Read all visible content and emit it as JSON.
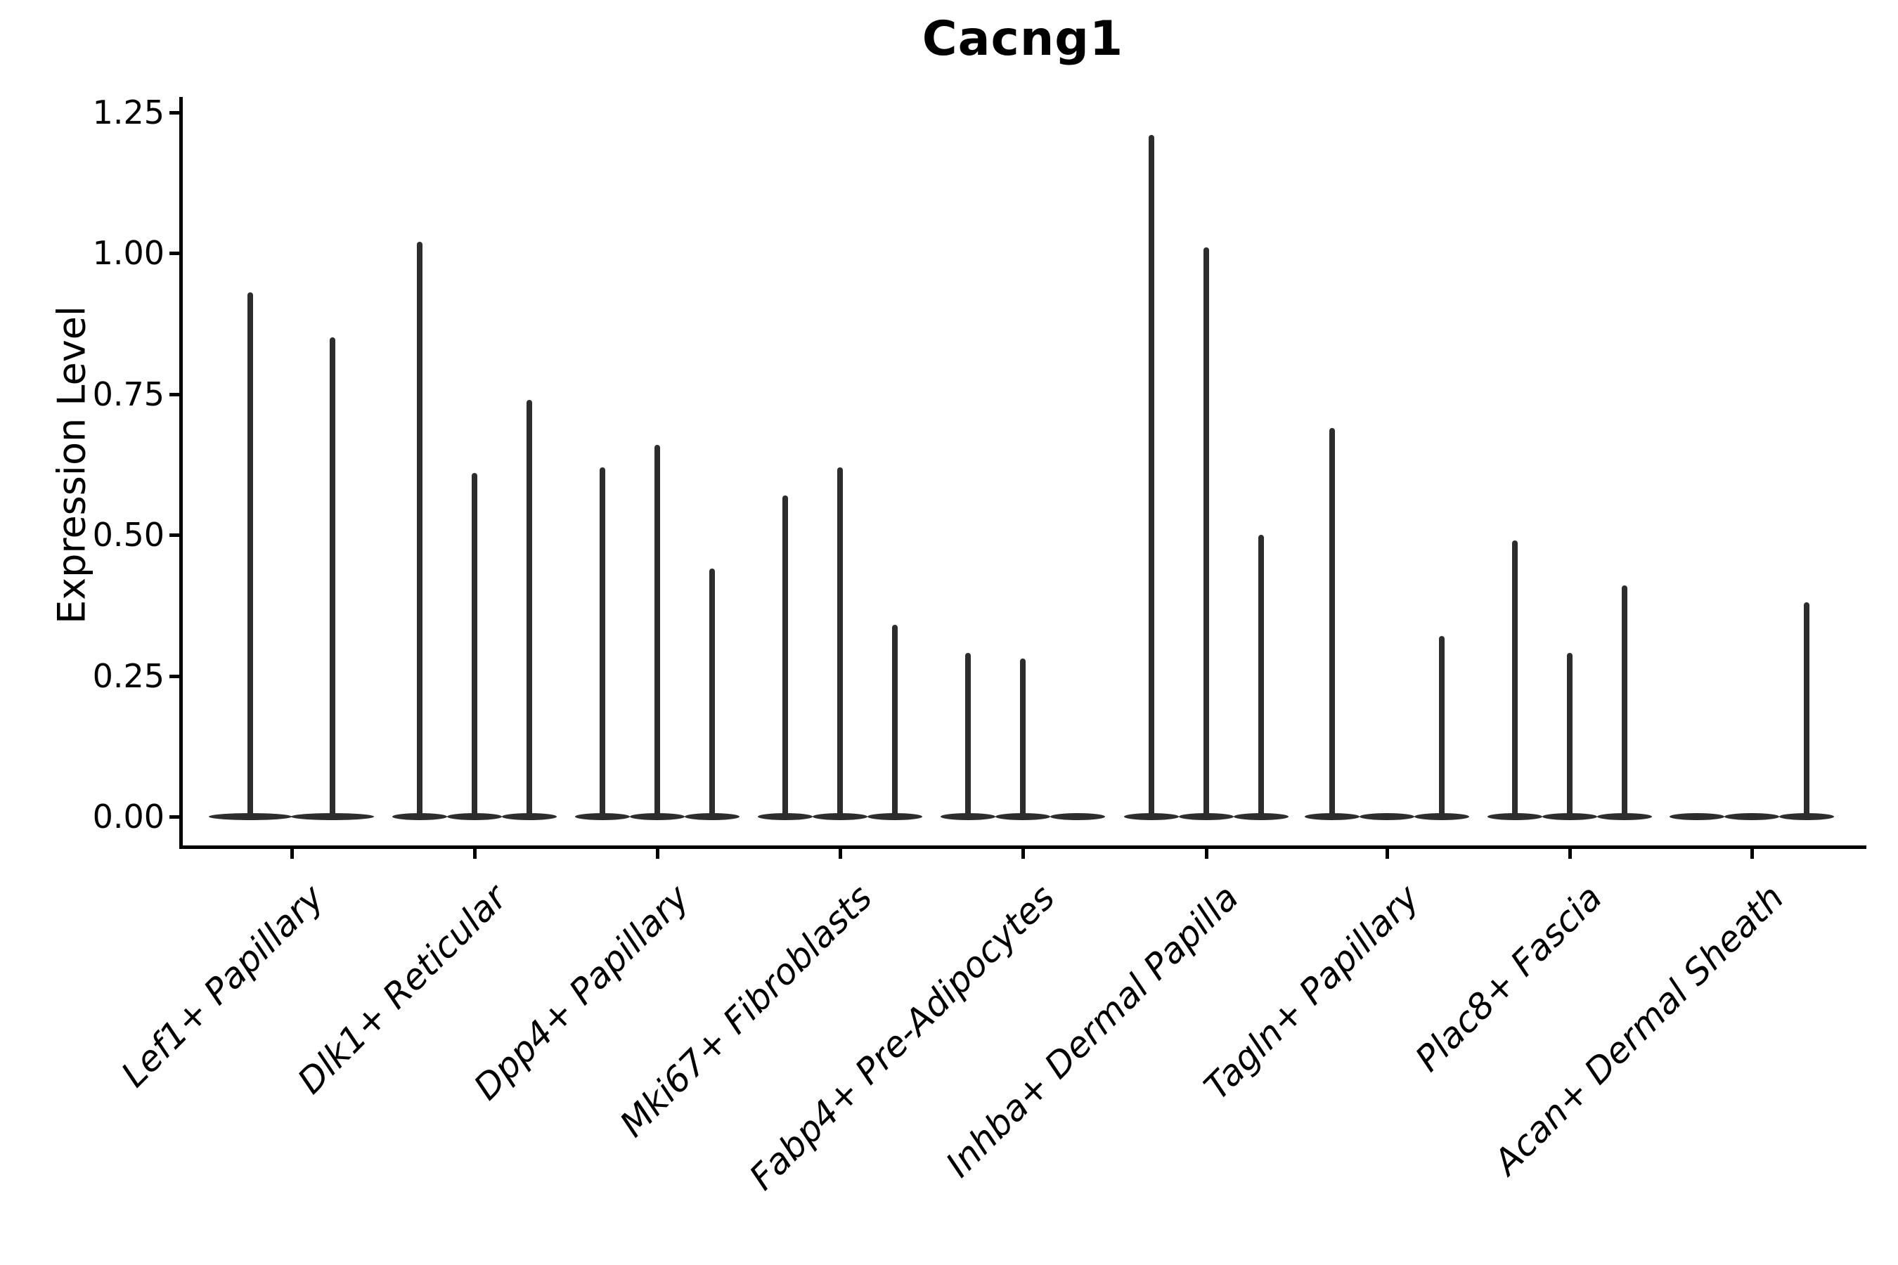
{
  "chart_data": {
    "type": "violin",
    "title": "Cacng1",
    "ylabel": "Expression Level",
    "xlabel": "",
    "ylim": [
      0,
      1.25
    ],
    "yticks": [
      0,
      0.25,
      0.5,
      0.75,
      1.0,
      1.25
    ],
    "ytick_labels": [
      "0.00",
      "0.25",
      "0.50",
      "0.75",
      "1.00",
      "1.25"
    ],
    "grid": false,
    "legend": "none",
    "violin_color": "#2d2d2d",
    "axis_color": "#000000",
    "categories": [
      "Lef1+ Papillary",
      "Dlk1+ Reticular",
      "Dpp4+ Papillary",
      "Mki67+ Fibroblasts",
      "Fabp4+ Pre-Adipocytes",
      "Inhba+ Dermal Papilla",
      "Tagln+ Papillary",
      "Plac8+ Fascia",
      "Acan+ Dermal Sheath"
    ],
    "groups": [
      {
        "category": "Lef1+ Papillary",
        "violins": [
          {
            "offset": -59,
            "width": 118,
            "max": 0.93
          },
          {
            "offset": 58,
            "width": 118,
            "max": 0.85
          }
        ]
      },
      {
        "category": "Dlk1+ Reticular",
        "violins": [
          {
            "offset": -78,
            "width": 78,
            "max": 1.02
          },
          {
            "offset": 0,
            "width": 78,
            "max": 0.61
          },
          {
            "offset": 78,
            "width": 78,
            "max": 0.74
          }
        ]
      },
      {
        "category": "Dpp4+ Papillary",
        "violins": [
          {
            "offset": -78,
            "width": 78,
            "max": 0.62
          },
          {
            "offset": 0,
            "width": 78,
            "max": 0.66
          },
          {
            "offset": 78,
            "width": 78,
            "max": 0.44
          }
        ]
      },
      {
        "category": "Mki67+ Fibroblasts",
        "violins": [
          {
            "offset": -78,
            "width": 78,
            "max": 0.57
          },
          {
            "offset": 0,
            "width": 78,
            "max": 0.62
          },
          {
            "offset": 78,
            "width": 78,
            "max": 0.34
          }
        ]
      },
      {
        "category": "Fabp4+ Pre-Adipocytes",
        "violins": [
          {
            "offset": -78,
            "width": 78,
            "max": 0.29
          },
          {
            "offset": 0,
            "width": 78,
            "max": 0.28
          },
          {
            "offset": 78,
            "width": 78,
            "max": 0.0
          }
        ]
      },
      {
        "category": "Inhba+ Dermal Papilla",
        "violins": [
          {
            "offset": -78,
            "width": 78,
            "max": 1.21
          },
          {
            "offset": 0,
            "width": 78,
            "max": 1.01
          },
          {
            "offset": 78,
            "width": 78,
            "max": 0.5
          }
        ]
      },
      {
        "category": "Tagln+ Papillary",
        "violins": [
          {
            "offset": -78,
            "width": 78,
            "max": 0.69
          },
          {
            "offset": 0,
            "width": 78,
            "max": 0.0
          },
          {
            "offset": 78,
            "width": 78,
            "max": 0.32
          }
        ]
      },
      {
        "category": "Plac8+ Fascia",
        "violins": [
          {
            "offset": -78,
            "width": 78,
            "max": 0.49
          },
          {
            "offset": 0,
            "width": 78,
            "max": 0.29
          },
          {
            "offset": 78,
            "width": 78,
            "max": 0.41
          }
        ]
      },
      {
        "category": "Acan+ Dermal Sheath",
        "violins": [
          {
            "offset": -78,
            "width": 78,
            "max": 0.0
          },
          {
            "offset": 0,
            "width": 78,
            "max": 0.0
          },
          {
            "offset": 78,
            "width": 78,
            "max": 0.38
          }
        ]
      }
    ]
  }
}
